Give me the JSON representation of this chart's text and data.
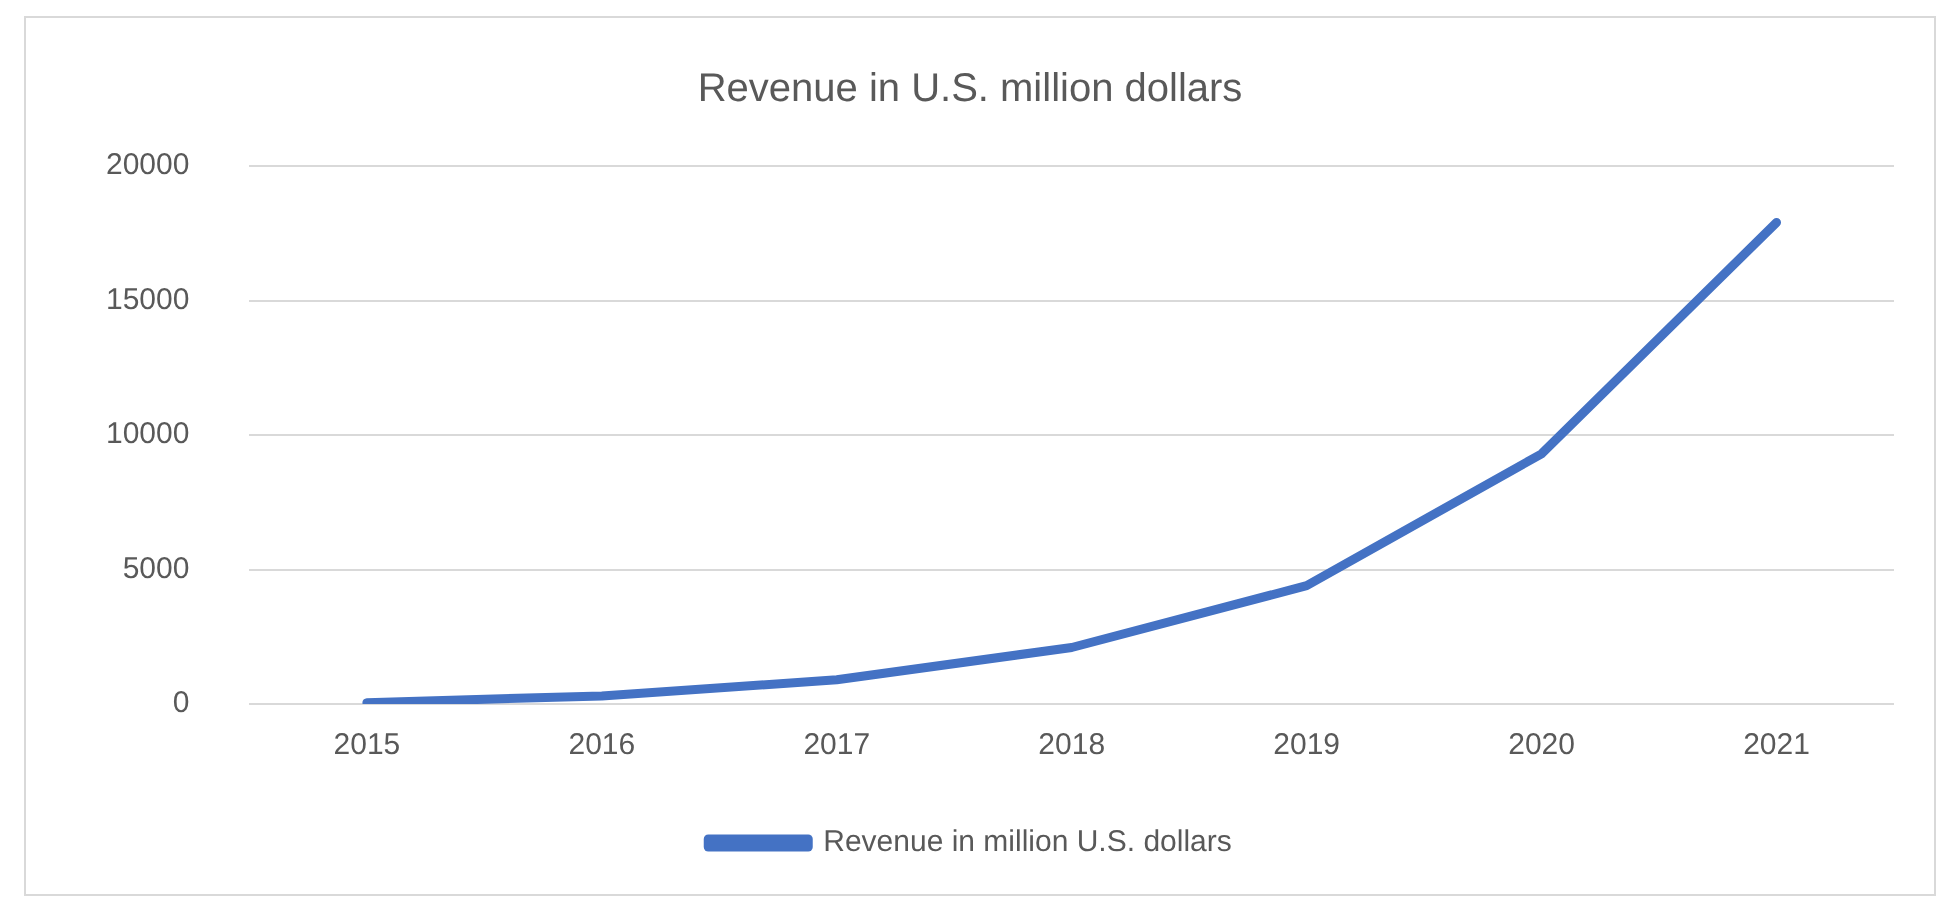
{
  "chart_data": {
    "type": "line",
    "title": "Revenue in U.S. million dollars",
    "categories": [
      "2015",
      "2016",
      "2017",
      "2018",
      "2019",
      "2020",
      "2021"
    ],
    "series": [
      {
        "name": "Revenue in million U.S. dollars",
        "color": "#4472c4",
        "values": [
          50,
          300,
          900,
          2100,
          4400,
          9300,
          17900
        ]
      }
    ],
    "ylim": [
      0,
      20000
    ],
    "yticks": [
      0,
      5000,
      10000,
      15000,
      20000
    ],
    "grid": "y",
    "legend": "bottom",
    "marker": "none",
    "line_style": "solid"
  }
}
